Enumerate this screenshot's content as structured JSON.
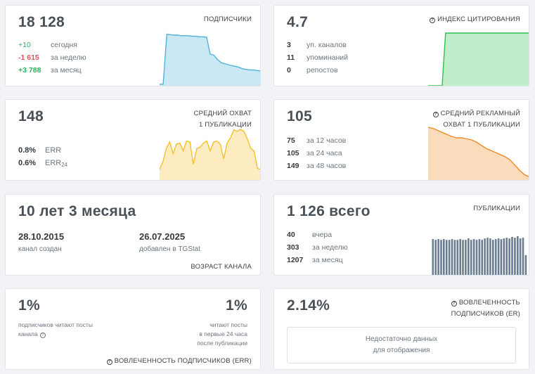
{
  "subscribers": {
    "value": "18 128",
    "caption": "ПОДПИСЧИКИ",
    "rows": [
      {
        "num": "+10",
        "label": "сегодня"
      },
      {
        "num": "-1 615",
        "label": "за неделю"
      },
      {
        "num": "+3 788",
        "label": "за месяц"
      }
    ],
    "chart_data": {
      "type": "area",
      "series": [
        {
          "values": [
            3,
            3,
            98,
            97,
            96,
            96,
            95,
            95,
            95,
            94,
            94,
            93,
            93,
            92,
            60,
            58,
            50,
            44,
            42,
            40,
            38,
            37,
            35,
            32,
            31,
            30,
            30,
            29,
            28
          ]
        }
      ],
      "color": "#4fb3d9"
    }
  },
  "citation": {
    "value": "4.7",
    "caption": "ИНДЕКС ЦИТИРОВАНИЯ",
    "rows": [
      {
        "num": "3",
        "label": "уп. каналов"
      },
      {
        "num": "11",
        "label": "упоминаний"
      },
      {
        "num": "0",
        "label": "репостов"
      }
    ],
    "chart_data": {
      "type": "area",
      "series": [
        {
          "values": [
            0,
            0,
            0,
            0,
            0,
            100,
            100,
            100,
            100,
            100,
            100,
            100,
            100,
            100,
            100,
            100,
            100,
            100,
            100,
            100,
            100,
            100,
            100,
            100,
            100,
            100,
            100,
            100,
            100,
            100
          ]
        }
      ],
      "color": "#2ec24e"
    }
  },
  "avg_reach": {
    "value": "148",
    "caption_1": "СРЕДНИЙ ОХВАТ",
    "caption_2": "1 ПУБЛИКАЦИИ",
    "err": {
      "num": "0.8%",
      "label": "ERR"
    },
    "err24": {
      "num": "0.6%",
      "label": "ERR",
      "sub": "24"
    },
    "chart_data": {
      "type": "area",
      "series": [
        {
          "values": [
            20,
            35,
            60,
            72,
            50,
            68,
            70,
            55,
            74,
            72,
            30,
            60,
            62,
            70,
            74,
            55,
            72,
            74,
            68,
            40,
            70,
            80,
            95,
            92,
            96,
            92,
            78,
            60,
            55,
            22,
            20
          ]
        }
      ],
      "color": "#f5c02a"
    }
  },
  "ad_reach": {
    "value": "105",
    "caption_1": "СРЕДНИЙ РЕКЛАМНЫЙ",
    "caption_2": "ОХВАТ 1 ПУБЛИКАЦИИ",
    "rows": [
      {
        "num": "75",
        "label": "за 12 часов"
      },
      {
        "num": "105",
        "label": "за 24 часа"
      },
      {
        "num": "149",
        "label": "за 48 часов"
      }
    ],
    "chart_data": {
      "type": "area",
      "series": [
        {
          "values": [
            100,
            98,
            94,
            90,
            86,
            82,
            80,
            80,
            78,
            76,
            72,
            66,
            60,
            56,
            52,
            48,
            44,
            38,
            28,
            18,
            10,
            6
          ]
        }
      ],
      "color": "#f08a24"
    }
  },
  "age": {
    "value": "10 лет 3 месяца",
    "created_date": "28.10.2015",
    "created_label": "канал создан",
    "added_date": "26.07.2025",
    "added_label": "добавлен в TGStat",
    "caption": "ВОЗРАСТ КАНАЛА"
  },
  "publications": {
    "value": "1 126 всего",
    "caption": "ПУБЛИКАЦИИ",
    "rows": [
      {
        "num": "40",
        "label": "вчера"
      },
      {
        "num": "303",
        "label": "за неделю"
      },
      {
        "num": "1207",
        "label": "за месяц"
      }
    ],
    "chart_data": {
      "type": "bar",
      "values": [
        51,
        50,
        51,
        50,
        51,
        50,
        50,
        51,
        50,
        50,
        51,
        50,
        50,
        52,
        50,
        51,
        50,
        51,
        50,
        52,
        53,
        52,
        50,
        51,
        52,
        51,
        52,
        53,
        52,
        54,
        53,
        55,
        52,
        53,
        29
      ],
      "color": "#6b7d90"
    }
  },
  "err_card": {
    "left_value": "1%",
    "left_label_1": "подписчиков читают посты",
    "left_label_2": "канала",
    "right_value": "1%",
    "right_label_1": "читают посты",
    "right_label_2": "в первые 24 часа",
    "right_label_3": "после публикации",
    "caption": "ВОВЛЕЧЕННОСТЬ ПОДПИСЧИКОВ (ERR)"
  },
  "er_card": {
    "value": "2.14%",
    "caption_1": "ВОВЛЕЧЕННОСТЬ",
    "caption_2": "ПОДПИСЧИКОВ (ER)",
    "nodata_1": "Недостаточно данных",
    "nodata_2": "для отображения"
  }
}
